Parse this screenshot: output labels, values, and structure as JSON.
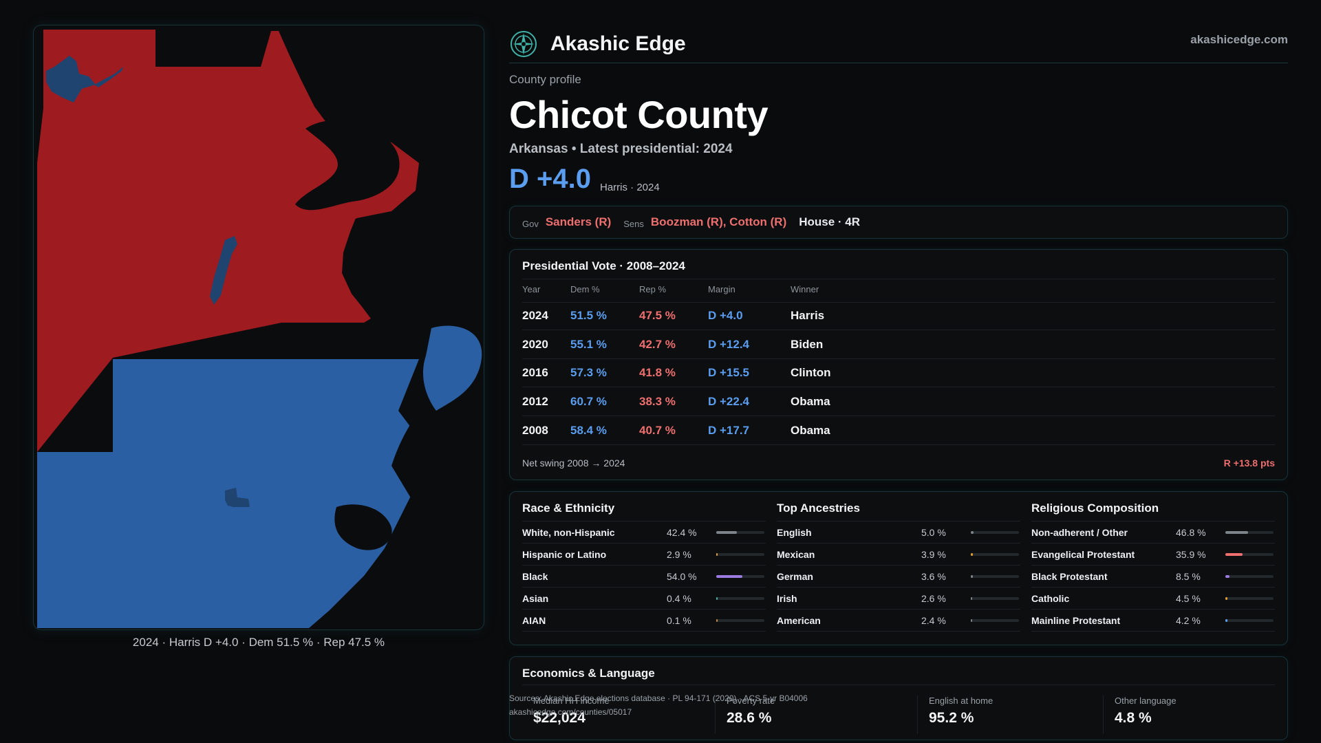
{
  "map": {
    "caption": "2024 · Harris D +4.0 · Dem 51.5 % · Rep 47.5 %",
    "colors": {
      "rep": "#9e1b20",
      "dem": "#2b5fa3",
      "water": "#0b0c0e",
      "dem_city": "#1f4470"
    }
  },
  "brand": {
    "name": "Akashic Edge",
    "url": "akashicedge.com",
    "icon": "compass-rose-icon"
  },
  "profile": {
    "kicker": "County profile",
    "title": "Chicot County",
    "subtitle": "Arkansas • Latest presidential: 2024",
    "margin": "D +4.0",
    "margin_note": "Harris · 2024"
  },
  "officials": {
    "gov_label": "Gov",
    "gov_value": "Sanders (R)",
    "sens_label": "Sens",
    "sens_value": "Boozman (R), Cotton (R)",
    "house": "House · 4R"
  },
  "presidential": {
    "title": "Presidential Vote · 2008–2024",
    "headers": {
      "year": "Year",
      "dem": "Dem %",
      "rep": "Rep %",
      "margin": "Margin",
      "winner": "Winner"
    },
    "rows": [
      {
        "year": "2024",
        "dem": "51.5 %",
        "rep": "47.5 %",
        "margin": "D +4.0",
        "winner": "Harris"
      },
      {
        "year": "2020",
        "dem": "55.1 %",
        "rep": "42.7 %",
        "margin": "D +12.4",
        "winner": "Biden"
      },
      {
        "year": "2016",
        "dem": "57.3 %",
        "rep": "41.8 %",
        "margin": "D +15.5",
        "winner": "Clinton"
      },
      {
        "year": "2012",
        "dem": "60.7 %",
        "rep": "38.3 %",
        "margin": "D +22.4",
        "winner": "Obama"
      },
      {
        "year": "2008",
        "dem": "58.4 %",
        "rep": "40.7 %",
        "margin": "D +17.7",
        "winner": "Obama"
      }
    ],
    "swing_label": "Net swing 2008 → 2024",
    "swing_value": "R +13.8 pts"
  },
  "race": {
    "title": "Race & Ethnicity",
    "items": [
      {
        "label": "White, non-Hispanic",
        "value": "42.4 %",
        "fraction": 0.424,
        "color": "#7d848a"
      },
      {
        "label": "Hispanic or Latino",
        "value": "2.9 %",
        "fraction": 0.029,
        "color": "#e0a030"
      },
      {
        "label": "Black",
        "value": "54.0 %",
        "fraction": 0.54,
        "color": "#9b7be0"
      },
      {
        "label": "Asian",
        "value": "0.4 %",
        "fraction": 0.004,
        "color": "#3fb3a8"
      },
      {
        "label": "AIAN",
        "value": "0.1 %",
        "fraction": 0.001,
        "color": "#c0883c"
      }
    ]
  },
  "ancestry": {
    "title": "Top Ancestries",
    "items": [
      {
        "label": "English",
        "value": "5.0 %",
        "fraction": 0.05,
        "color": "#7d848a"
      },
      {
        "label": "Mexican",
        "value": "3.9 %",
        "fraction": 0.039,
        "color": "#e0a030"
      },
      {
        "label": "German",
        "value": "3.6 %",
        "fraction": 0.036,
        "color": "#7d848a"
      },
      {
        "label": "Irish",
        "value": "2.6 %",
        "fraction": 0.026,
        "color": "#7d848a"
      },
      {
        "label": "American",
        "value": "2.4 %",
        "fraction": 0.024,
        "color": "#7d848a"
      }
    ]
  },
  "religion": {
    "title": "Religious Composition",
    "items": [
      {
        "label": "Non-adherent / Other",
        "value": "46.8 %",
        "fraction": 0.468,
        "color": "#7d848a"
      },
      {
        "label": "Evangelical Protestant",
        "value": "35.9 %",
        "fraction": 0.359,
        "color": "#ef6f6f"
      },
      {
        "label": "Black Protestant",
        "value": "8.5 %",
        "fraction": 0.085,
        "color": "#9b7be0"
      },
      {
        "label": "Catholic",
        "value": "4.5 %",
        "fraction": 0.045,
        "color": "#e0a030"
      },
      {
        "label": "Mainline Protestant",
        "value": "4.2 %",
        "fraction": 0.042,
        "color": "#5b9ef0"
      }
    ]
  },
  "economics": {
    "title": "Economics & Language",
    "stats": [
      {
        "label": "Median HH income",
        "value": "$22,024"
      },
      {
        "label": "Poverty rate",
        "value": "28.6 %"
      },
      {
        "label": "English at home",
        "value": "95.2 %"
      },
      {
        "label": "Other language",
        "value": "4.8 %"
      }
    ]
  },
  "footer": {
    "sources": "Sources: Akashic Edge elections database · PL 94-171 (2020) · ACS 5-yr B04006",
    "link": "akashicedge.com/counties/05017"
  }
}
